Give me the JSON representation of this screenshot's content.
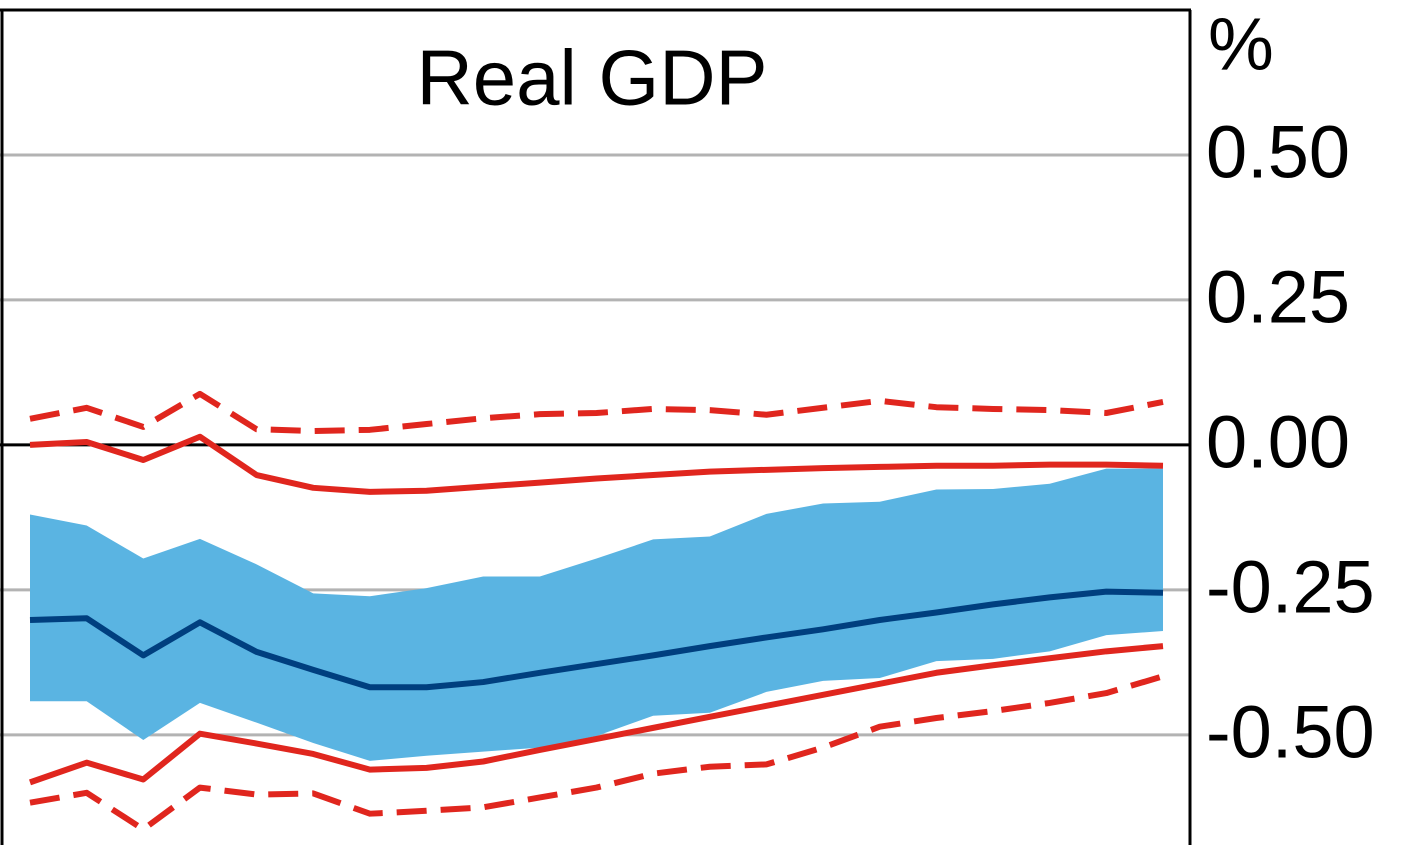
{
  "chart_data": {
    "type": "line",
    "title": "Real GDP",
    "y_unit": "%",
    "categories": [
      null,
      null,
      null,
      null,
      null,
      null,
      null,
      null,
      null,
      null,
      null,
      null,
      null,
      null,
      null,
      null,
      null,
      null,
      null,
      null,
      null
    ],
    "ylim": [
      -0.69,
      0.75
    ],
    "yticks": [
      {
        "value": 0.5,
        "label": "0.50"
      },
      {
        "value": 0.25,
        "label": "0.25"
      },
      {
        "value": 0,
        "label": "0.00"
      },
      {
        "value": -0.25,
        "label": "-0.25"
      },
      {
        "value": -0.5,
        "label": "-0.50"
      }
    ],
    "grid": true,
    "band": {
      "color": "#5ab4e2",
      "upper": [
        -0.12,
        -0.139,
        -0.196,
        -0.162,
        -0.206,
        -0.256,
        -0.261,
        -0.247,
        -0.227,
        -0.227,
        -0.196,
        -0.163,
        -0.158,
        -0.119,
        -0.101,
        -0.098,
        -0.077,
        -0.076,
        -0.067,
        -0.041,
        -0.041
      ],
      "lower": [
        -0.442,
        -0.442,
        -0.509,
        -0.445,
        -0.479,
        -0.514,
        -0.545,
        -0.536,
        -0.529,
        -0.522,
        -0.502,
        -0.467,
        -0.462,
        -0.426,
        -0.407,
        -0.402,
        -0.373,
        -0.369,
        -0.356,
        -0.328,
        -0.321
      ]
    },
    "series": [
      {
        "color": "#003f7f",
        "style": "solid",
        "values": [
          -0.302,
          -0.299,
          -0.363,
          -0.306,
          -0.357,
          -0.388,
          -0.418,
          -0.418,
          -0.409,
          -0.393,
          -0.378,
          -0.363,
          -0.347,
          -0.332,
          -0.318,
          -0.302,
          -0.289,
          -0.275,
          -0.263,
          -0.253,
          -0.255
        ]
      },
      {
        "color": "#e0261e",
        "style": "solid",
        "values": [
          0.0,
          0.005,
          -0.026,
          0.014,
          -0.052,
          -0.074,
          -0.081,
          -0.079,
          -0.072,
          -0.065,
          -0.058,
          -0.052,
          -0.046,
          -0.043,
          -0.04,
          -0.038,
          -0.036,
          -0.036,
          -0.034,
          -0.034,
          -0.036
        ]
      },
      {
        "color": "#e0261e",
        "style": "solid",
        "values": [
          -0.582,
          -0.548,
          -0.577,
          -0.498,
          -0.515,
          -0.533,
          -0.56,
          -0.557,
          -0.546,
          -0.526,
          -0.507,
          -0.488,
          -0.469,
          -0.45,
          -0.431,
          -0.412,
          -0.393,
          -0.38,
          -0.368,
          -0.356,
          -0.347
        ]
      },
      {
        "color": "#e0261e",
        "style": "dashed",
        "values": [
          0.045,
          0.064,
          0.031,
          0.088,
          0.027,
          0.024,
          0.026,
          0.036,
          0.046,
          0.053,
          0.055,
          0.062,
          0.06,
          0.052,
          0.064,
          0.076,
          0.065,
          0.062,
          0.06,
          0.055,
          0.074
        ]
      },
      {
        "color": "#e0261e",
        "style": "dashed",
        "values": [
          -0.617,
          -0.6,
          -0.663,
          -0.591,
          -0.603,
          -0.601,
          -0.636,
          -0.631,
          -0.625,
          -0.608,
          -0.591,
          -0.567,
          -0.555,
          -0.551,
          -0.522,
          -0.486,
          -0.471,
          -0.459,
          -0.445,
          -0.428,
          -0.399
        ]
      }
    ]
  }
}
